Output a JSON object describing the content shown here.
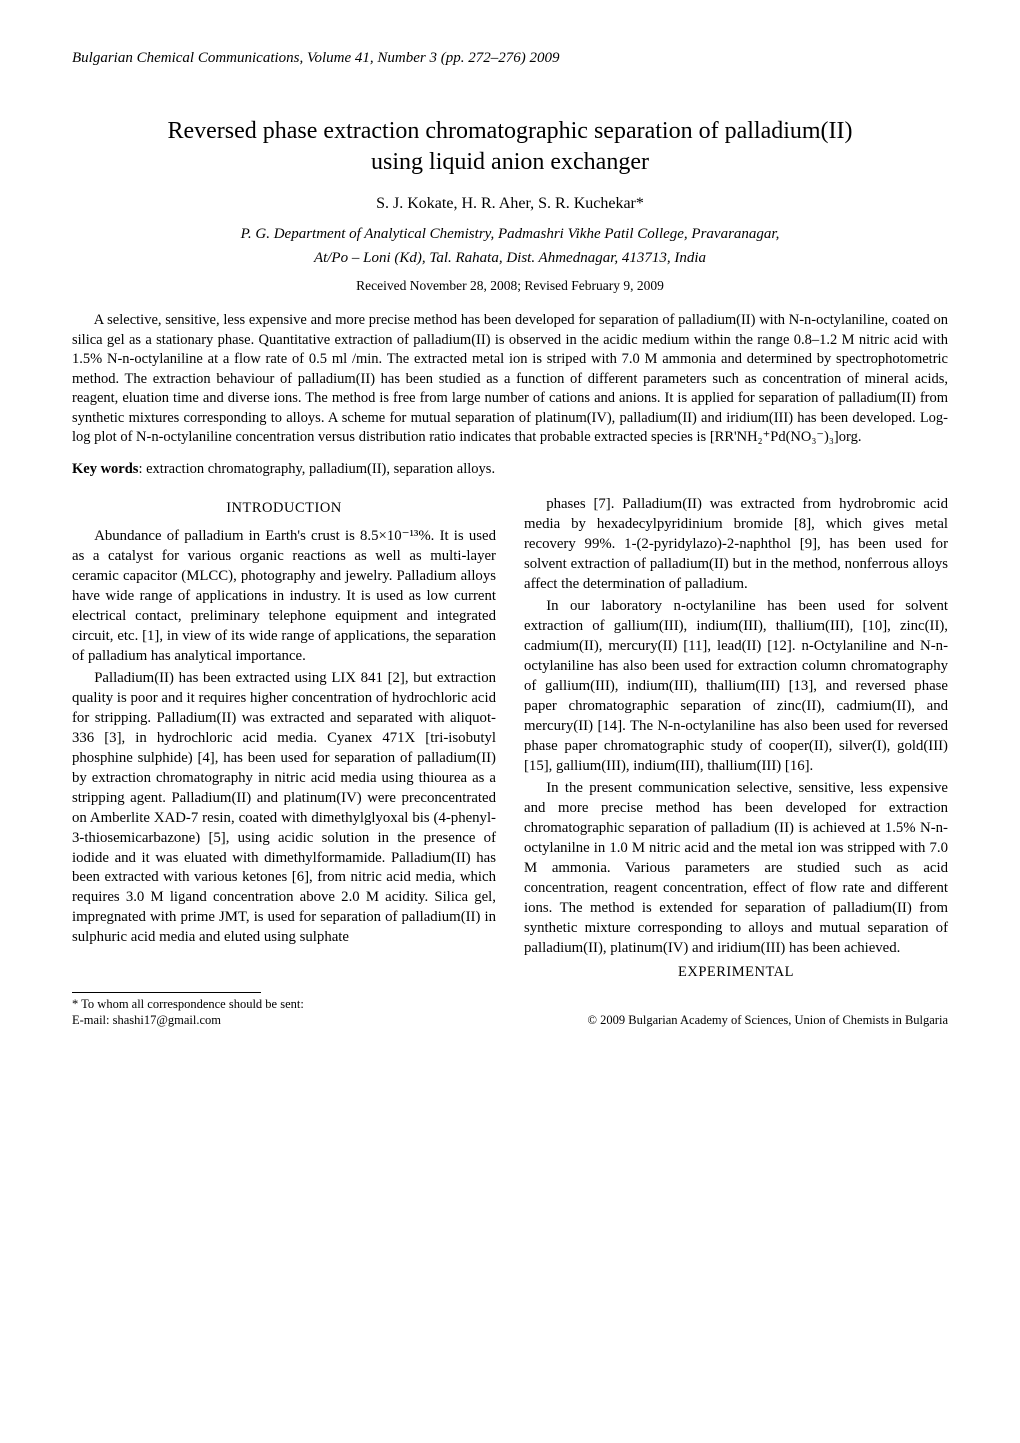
{
  "journal_header": "Bulgarian Chemical Communications, Volume 41, Number 3 (pp. 272–276) 2009",
  "title_line1": "Reversed phase extraction chromatographic separation of palladium(II)",
  "title_line2": "using liquid anion exchanger",
  "authors": "S. J. Kokate, H. R. Aher, S. R. Kuchekar*",
  "affiliation_line1": "P. G. Department of Analytical Chemistry, Padmashri Vikhe Patil College, Pravaranagar,",
  "affiliation_line2": "At/Po – Loni (Kd), Tal. Rahata, Dist. Ahmednagar, 413713, India",
  "dates": "Received November 28, 2008;   Revised February 9, 2009",
  "abstract": "A selective, sensitive, less expensive and more precise method has been developed for separation of palladium(II) with N-n-octylaniline, coated on silica gel as a stationary phase. Quantitative extraction of palladium(II) is observed in the acidic medium within the range 0.8–1.2 M nitric acid with 1.5% N-n-octylaniline at a flow rate of 0.5 ml /min. The extracted metal ion is striped with 7.0 M ammonia and determined by spectrophotometric method. The extraction behaviour of palladium(II) has been studied as a function of different parameters such as concentration of mineral acids, reagent, eluation time and diverse ions. The method is free from large number of cations and anions. It is applied for separation of palladium(II) from synthetic mixtures corresponding to alloys. A scheme for mutual separation of platinum(IV), palladium(II) and iridium(III) has been developed. Log-log plot of N-n-octylaniline concentration versus distribution ratio indicates that probable extracted species is [RR'NH₂⁺Pd(NO₃⁻)₃]org.",
  "keywords_label": "Key words",
  "keywords_text": ": extraction chromatography, palladium(II), separation alloys.",
  "sections": {
    "introduction_heading": "INTRODUCTION",
    "experimental_heading": "EXPERIMENTAL"
  },
  "paragraphs": {
    "p1": "Abundance of palladium in Earth's crust is 8.5×10⁻¹³%. It is used as a catalyst for various organic reactions as well as multi-layer ceramic capacitor (MLCC), photography and jewelry. Palladium alloys have wide range of applications in industry. It is used as low current electrical contact, preliminary telephone equipment and integrated circuit, etc. [1], in view of its wide range of applications, the separation of palladium has analytical importance.",
    "p2": "Palladium(II) has been extracted using LIX 841 [2], but extraction quality is poor and it requires higher concentration of hydrochloric acid for stripping. Palladium(II) was extracted and separated with aliquot-336 [3], in hydrochloric acid media. Cyanex 471X [tri-isobutyl phosphine sulphide) [4], has been used for separation of palladium(II) by extraction chromatography in nitric acid media using thiourea as a stripping agent. Palladium(II) and platinum(IV) were preconcentrated on Amberlite XAD-7 resin, coated with dimethylglyoxal bis (4-phenyl-3-thiosemicarbazone) [5], using acidic solution in the presence of iodide and it was eluated with dimethylformamide. Palladium(II) has been extracted with various ketones [6], from nitric acid media, which requires 3.0 M ligand concentration above 2.0 M acidity. Silica gel, impregnated with prime JMT, is used for separation of palladium(II) in sulphuric acid media and eluted using sulphate",
    "p3": "phases [7]. Palladium(II) was extracted from hydrobromic acid media by hexadecylpyridinium bromide [8], which gives metal recovery 99%. 1-(2-pyridylazo)-2-naphthol [9], has been used for solvent extraction of palladium(II) but in the method, nonferrous alloys affect the determination of palladium.",
    "p4": "In our laboratory n-octylaniline has been used for solvent extraction of gallium(III), indium(III), thallium(III), [10], zinc(II), cadmium(II), mercury(II) [11], lead(II) [12]. n-Octylaniline and N-n-octylaniline has also been used for extraction column chromatography of gallium(III), indium(III), thallium(III) [13], and reversed phase paper chromatographic separation of zinc(II), cadmium(II), and mercury(II) [14]. The N-n-octylaniline has also been used for reversed phase paper chromatographic study of cooper(II), silver(I), gold(III) [15], gallium(III), indium(III), thallium(III) [16].",
    "p5": "In the present communication selective, sensitive, less expensive and more precise method has been developed for extraction chromatographic separation of palladium (II) is achieved at 1.5% N-n-octylanilne in 1.0 M nitric acid and the metal ion was stripped with 7.0 M ammonia. Various parameters are studied such as acid concentration, reagent concentration, effect of flow rate and different ions. The method is extended for separation of palladium(II) from synthetic mixture corresponding to alloys and mutual separation of palladium(II), platinum(IV) and iridium(III) has been achieved."
  },
  "footnote_line1": "* To whom all correspondence should be sent:",
  "footnote_line2": "E-mail: shashi17@gmail.com",
  "copyright": "© 2009 Bulgarian Academy of Sciences, Union of Chemists in Bulgaria",
  "colors": {
    "text": "#000000",
    "background": "#ffffff"
  },
  "typography": {
    "body_font": "Times New Roman",
    "title_size_pt": 18,
    "author_size_pt": 12,
    "body_size_pt": 11,
    "footnote_size_pt": 9
  }
}
